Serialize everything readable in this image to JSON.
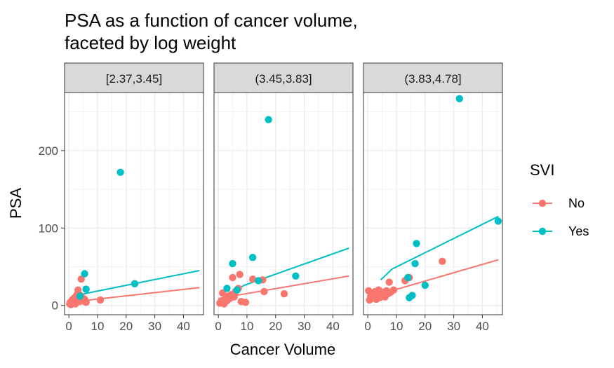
{
  "chart_data": {
    "type": "scatter",
    "title": "PSA as a function of cancer volume,",
    "title_line2": "faceted by log weight",
    "xlabel": "Cancer Volume",
    "ylabel": "PSA",
    "xlim": [
      -1.5,
      47
    ],
    "ylim": [
      -12,
      275
    ],
    "x_ticks": [
      0,
      10,
      20,
      30,
      40
    ],
    "y_ticks": [
      0,
      100,
      200
    ],
    "grid": true,
    "legend": {
      "title": "SVI",
      "position": "right",
      "entries": [
        {
          "name": "No",
          "color": "#F8766D"
        },
        {
          "name": "Yes",
          "color": "#00BFC4"
        }
      ]
    },
    "facets": [
      {
        "label": "[2.37,3.45]",
        "points": [
          {
            "x": 0.3,
            "y": 2,
            "svi": "No"
          },
          {
            "x": 0.5,
            "y": 4,
            "svi": "No"
          },
          {
            "x": 0.7,
            "y": 1,
            "svi": "No"
          },
          {
            "x": 1.0,
            "y": 6,
            "svi": "No"
          },
          {
            "x": 1.2,
            "y": 3,
            "svi": "No"
          },
          {
            "x": 1.5,
            "y": 8,
            "svi": "No"
          },
          {
            "x": 1.8,
            "y": 5,
            "svi": "No"
          },
          {
            "x": 2.0,
            "y": 10,
            "svi": "No"
          },
          {
            "x": 2.3,
            "y": 2,
            "svi": "No"
          },
          {
            "x": 2.5,
            "y": 12,
            "svi": "No"
          },
          {
            "x": 2.8,
            "y": 7,
            "svi": "No"
          },
          {
            "x": 3.0,
            "y": 15,
            "svi": "No"
          },
          {
            "x": 3.2,
            "y": 20,
            "svi": "No"
          },
          {
            "x": 3.5,
            "y": 9,
            "svi": "No"
          },
          {
            "x": 3.8,
            "y": 5,
            "svi": "No"
          },
          {
            "x": 4.0,
            "y": 13,
            "svi": "No"
          },
          {
            "x": 4.3,
            "y": 34,
            "svi": "No"
          },
          {
            "x": 4.5,
            "y": 11,
            "svi": "No"
          },
          {
            "x": 5.0,
            "y": 6,
            "svi": "No"
          },
          {
            "x": 5.5,
            "y": 8,
            "svi": "No"
          },
          {
            "x": 6.0,
            "y": 4,
            "svi": "No"
          },
          {
            "x": 11.0,
            "y": 7,
            "svi": "No"
          },
          {
            "x": 3.9,
            "y": 12,
            "svi": "Yes"
          },
          {
            "x": 5.5,
            "y": 41,
            "svi": "Yes"
          },
          {
            "x": 6.0,
            "y": 21,
            "svi": "Yes"
          },
          {
            "x": 18.0,
            "y": 172,
            "svi": "Yes"
          },
          {
            "x": 23.0,
            "y": 28,
            "svi": "Yes"
          }
        ],
        "fits": [
          {
            "svi": "No",
            "x": [
              0,
              45.6
            ],
            "y": [
              4,
              23
            ]
          },
          {
            "svi": "Yes",
            "x": [
              3.9,
              45.6
            ],
            "y": [
              14,
              45
            ]
          }
        ]
      },
      {
        "label": "(3.45,3.83]",
        "points": [
          {
            "x": 0.5,
            "y": 3,
            "svi": "No"
          },
          {
            "x": 1.0,
            "y": 5,
            "svi": "No"
          },
          {
            "x": 1.5,
            "y": 16,
            "svi": "No"
          },
          {
            "x": 2.0,
            "y": 2,
            "svi": "No"
          },
          {
            "x": 2.5,
            "y": 8,
            "svi": "No"
          },
          {
            "x": 3.0,
            "y": 6,
            "svi": "No"
          },
          {
            "x": 3.5,
            "y": 12,
            "svi": "No"
          },
          {
            "x": 4.0,
            "y": 9,
            "svi": "No"
          },
          {
            "x": 4.5,
            "y": 14,
            "svi": "No"
          },
          {
            "x": 5.0,
            "y": 36,
            "svi": "No"
          },
          {
            "x": 5.5,
            "y": 11,
            "svi": "No"
          },
          {
            "x": 6.0,
            "y": 18,
            "svi": "No"
          },
          {
            "x": 7.0,
            "y": 22,
            "svi": "No"
          },
          {
            "x": 7.5,
            "y": 40,
            "svi": "No"
          },
          {
            "x": 8.0,
            "y": 5,
            "svi": "No"
          },
          {
            "x": 9.5,
            "y": 4,
            "svi": "No"
          },
          {
            "x": 12.0,
            "y": 34,
            "svi": "No"
          },
          {
            "x": 15.5,
            "y": 33,
            "svi": "No"
          },
          {
            "x": 16.0,
            "y": 18,
            "svi": "No"
          },
          {
            "x": 23.0,
            "y": 15,
            "svi": "No"
          },
          {
            "x": 3.0,
            "y": 22,
            "svi": "Yes"
          },
          {
            "x": 5.0,
            "y": 54,
            "svi": "Yes"
          },
          {
            "x": 6.5,
            "y": 20,
            "svi": "Yes"
          },
          {
            "x": 12.0,
            "y": 62,
            "svi": "Yes"
          },
          {
            "x": 14.0,
            "y": 32,
            "svi": "Yes"
          },
          {
            "x": 17.5,
            "y": 240,
            "svi": "Yes"
          },
          {
            "x": 27.0,
            "y": 38,
            "svi": "Yes"
          }
        ],
        "fits": [
          {
            "svi": "No",
            "x": [
              0,
              45.6
            ],
            "y": [
              9,
              38
            ]
          },
          {
            "svi": "Yes",
            "x": [
              3.0,
              9.0,
              45.6
            ],
            "y": [
              13,
              26,
              74
            ]
          }
        ]
      },
      {
        "label": "(3.83,4.78]",
        "points": [
          {
            "x": 0.3,
            "y": 19,
            "svi": "No"
          },
          {
            "x": 0.6,
            "y": 7,
            "svi": "No"
          },
          {
            "x": 1.0,
            "y": 12,
            "svi": "No"
          },
          {
            "x": 1.4,
            "y": 9,
            "svi": "No"
          },
          {
            "x": 1.8,
            "y": 15,
            "svi": "No"
          },
          {
            "x": 2.2,
            "y": 11,
            "svi": "No"
          },
          {
            "x": 2.6,
            "y": 18,
            "svi": "No"
          },
          {
            "x": 3.0,
            "y": 8,
            "svi": "No"
          },
          {
            "x": 3.4,
            "y": 14,
            "svi": "No"
          },
          {
            "x": 3.8,
            "y": 20,
            "svi": "No"
          },
          {
            "x": 4.2,
            "y": 10,
            "svi": "No"
          },
          {
            "x": 4.6,
            "y": 16,
            "svi": "No"
          },
          {
            "x": 5.0,
            "y": 13,
            "svi": "No"
          },
          {
            "x": 5.5,
            "y": 17,
            "svi": "No"
          },
          {
            "x": 6.0,
            "y": 11,
            "svi": "No"
          },
          {
            "x": 6.5,
            "y": 19,
            "svi": "No"
          },
          {
            "x": 7.0,
            "y": 15,
            "svi": "No"
          },
          {
            "x": 7.5,
            "y": 30,
            "svi": "No"
          },
          {
            "x": 8.0,
            "y": 17,
            "svi": "No"
          },
          {
            "x": 9.0,
            "y": 20,
            "svi": "No"
          },
          {
            "x": 13.0,
            "y": 32,
            "svi": "No"
          },
          {
            "x": 14.5,
            "y": 36,
            "svi": "No"
          },
          {
            "x": 26.0,
            "y": 57,
            "svi": "No"
          },
          {
            "x": 14.0,
            "y": 36,
            "svi": "Yes"
          },
          {
            "x": 14.5,
            "y": 10,
            "svi": "Yes"
          },
          {
            "x": 15.5,
            "y": 13,
            "svi": "Yes"
          },
          {
            "x": 16.5,
            "y": 54,
            "svi": "Yes"
          },
          {
            "x": 17.0,
            "y": 80,
            "svi": "Yes"
          },
          {
            "x": 20.0,
            "y": 26,
            "svi": "Yes"
          },
          {
            "x": 32.0,
            "y": 267,
            "svi": "Yes"
          },
          {
            "x": 45.5,
            "y": 109,
            "svi": "Yes"
          }
        ],
        "fits": [
          {
            "svi": "No",
            "x": [
              0,
              45.6
            ],
            "y": [
              10,
              59
            ]
          },
          {
            "svi": "Yes",
            "x": [
              4.5,
              8.5,
              45.6
            ],
            "y": [
              33,
              47,
              115
            ]
          }
        ]
      }
    ]
  }
}
